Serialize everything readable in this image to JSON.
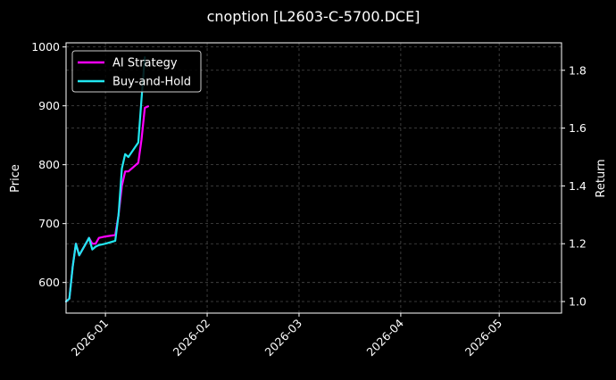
{
  "chart_data": {
    "type": "line",
    "title": "cnoption [L2603-C-5700.DCE]",
    "ylabel_left": "Price",
    "ylabel_right": "Return",
    "xlabel": "",
    "xlim": [
      "2025-12-20",
      "2026-05-20"
    ],
    "ylim_left": [
      548,
      1007
    ],
    "ylim_right": [
      0.96,
      1.895
    ],
    "x_ticks": [
      "2026-01",
      "2026-02",
      "2026-03",
      "2026-04",
      "2026-05"
    ],
    "y_ticks_left": [
      600,
      700,
      800,
      900,
      1000
    ],
    "y_ticks_right": [
      1.0,
      1.2,
      1.4,
      1.6,
      1.8
    ],
    "grid": true,
    "legend": "top-left",
    "series": [
      {
        "name": "AI Strategy",
        "axis": "right",
        "color": "#ff00ff",
        "x": [
          "2025-12-20",
          "2025-12-21",
          "2025-12-22",
          "2025-12-23",
          "2025-12-24",
          "2025-12-25",
          "2025-12-26",
          "2025-12-27",
          "2025-12-28",
          "2025-12-29",
          "2025-12-30",
          "2026-01-01",
          "2026-01-04",
          "2026-01-05",
          "2026-01-06",
          "2026-01-07",
          "2026-01-08",
          "2026-01-11",
          "2026-01-12",
          "2026-01-13",
          "2026-01-14"
        ],
        "values": [
          1.0,
          1.01,
          1.12,
          1.2,
          1.16,
          1.18,
          1.2,
          1.22,
          1.2,
          1.2,
          1.22,
          1.225,
          1.23,
          1.3,
          1.4,
          1.45,
          1.45,
          1.48,
          1.56,
          1.67,
          1.675
        ]
      },
      {
        "name": "Buy-and-Hold",
        "axis": "right",
        "color": "#22e6f0",
        "x": [
          "2025-12-20",
          "2025-12-21",
          "2025-12-22",
          "2025-12-23",
          "2025-12-24",
          "2025-12-25",
          "2025-12-26",
          "2025-12-27",
          "2025-12-28",
          "2025-12-29",
          "2025-12-30",
          "2026-01-01",
          "2026-01-04",
          "2026-01-05",
          "2026-01-06",
          "2026-01-07",
          "2026-01-08",
          "2026-01-11",
          "2026-01-12",
          "2026-01-13"
        ],
        "values": [
          1.0,
          1.01,
          1.12,
          1.2,
          1.16,
          1.18,
          1.2,
          1.22,
          1.18,
          1.19,
          1.195,
          1.2,
          1.21,
          1.3,
          1.46,
          1.51,
          1.5,
          1.55,
          1.7,
          1.845
        ]
      }
    ]
  }
}
